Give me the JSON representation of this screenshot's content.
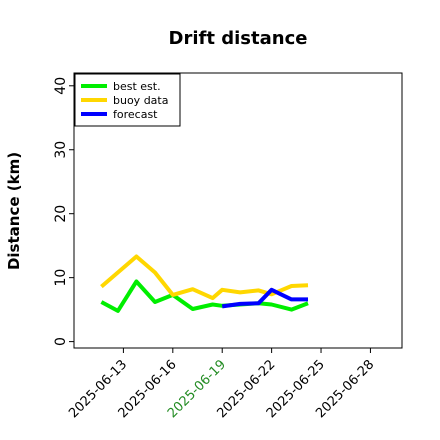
{
  "chart_data": {
    "type": "line",
    "title": "Drift distance",
    "ylabel": "Distance (km)",
    "xlabel": "",
    "ylim": [
      -1,
      42
    ],
    "xlim": [
      "2025-06-10T00:00",
      "2025-06-29T22:00"
    ],
    "yticks": [
      0,
      10,
      20,
      30,
      40
    ],
    "xticks": [
      {
        "date": "2025-06-13",
        "label": "2025-06-13",
        "color": "#000000"
      },
      {
        "date": "2025-06-16",
        "label": "2025-06-16",
        "color": "#000000"
      },
      {
        "date": "2025-06-19",
        "label": "2025-06-19",
        "color": "#228B22"
      },
      {
        "date": "2025-06-22",
        "label": "2025-06-22",
        "color": "#000000"
      },
      {
        "date": "2025-06-25",
        "label": "2025-06-25",
        "color": "#000000"
      },
      {
        "date": "2025-06-28",
        "label": "2025-06-28",
        "color": "#000000"
      }
    ],
    "legend_position": "top-left",
    "grid": false,
    "series": [
      {
        "name": "best est.",
        "color": "#00ee00",
        "x": [
          "2025-06-11T16:00",
          "2025-06-12T16:00",
          "2025-06-13T19:00",
          "2025-06-14T22:00",
          "2025-06-16T00:00",
          "2025-06-17T05:00",
          "2025-06-18T10:00",
          "2025-06-19T00:00",
          "2025-06-20T02:00",
          "2025-06-21T05:00",
          "2025-06-22T00:00",
          "2025-06-23T05:00",
          "2025-06-24T05:00"
        ],
        "y": [
          6.2,
          4.8,
          9.4,
          6.2,
          7.3,
          5.1,
          5.8,
          5.6,
          5.8,
          6.0,
          5.8,
          5.0,
          6.0
        ]
      },
      {
        "name": "buoy data",
        "color": "#ffd700",
        "x": [
          "2025-06-11T16:00",
          "2025-06-13T19:00",
          "2025-06-14T22:00",
          "2025-06-16T00:00",
          "2025-06-17T05:00",
          "2025-06-18T10:00",
          "2025-06-19T00:00",
          "2025-06-20T02:00",
          "2025-06-21T05:00",
          "2025-06-22T00:00",
          "2025-06-23T05:00",
          "2025-06-24T05:00"
        ],
        "y": [
          8.6,
          13.3,
          10.8,
          7.3,
          8.2,
          6.8,
          8.1,
          7.7,
          8.0,
          7.4,
          8.7,
          8.8
        ]
      },
      {
        "name": "forecast",
        "color": "#0000ff",
        "x": [
          "2025-06-19T00:00",
          "2025-06-20T02:00",
          "2025-06-21T05:00",
          "2025-06-22T00:00",
          "2025-06-23T05:00",
          "2025-06-24T05:00"
        ],
        "y": [
          5.5,
          5.9,
          6.0,
          8.1,
          6.6,
          6.6
        ]
      }
    ]
  }
}
